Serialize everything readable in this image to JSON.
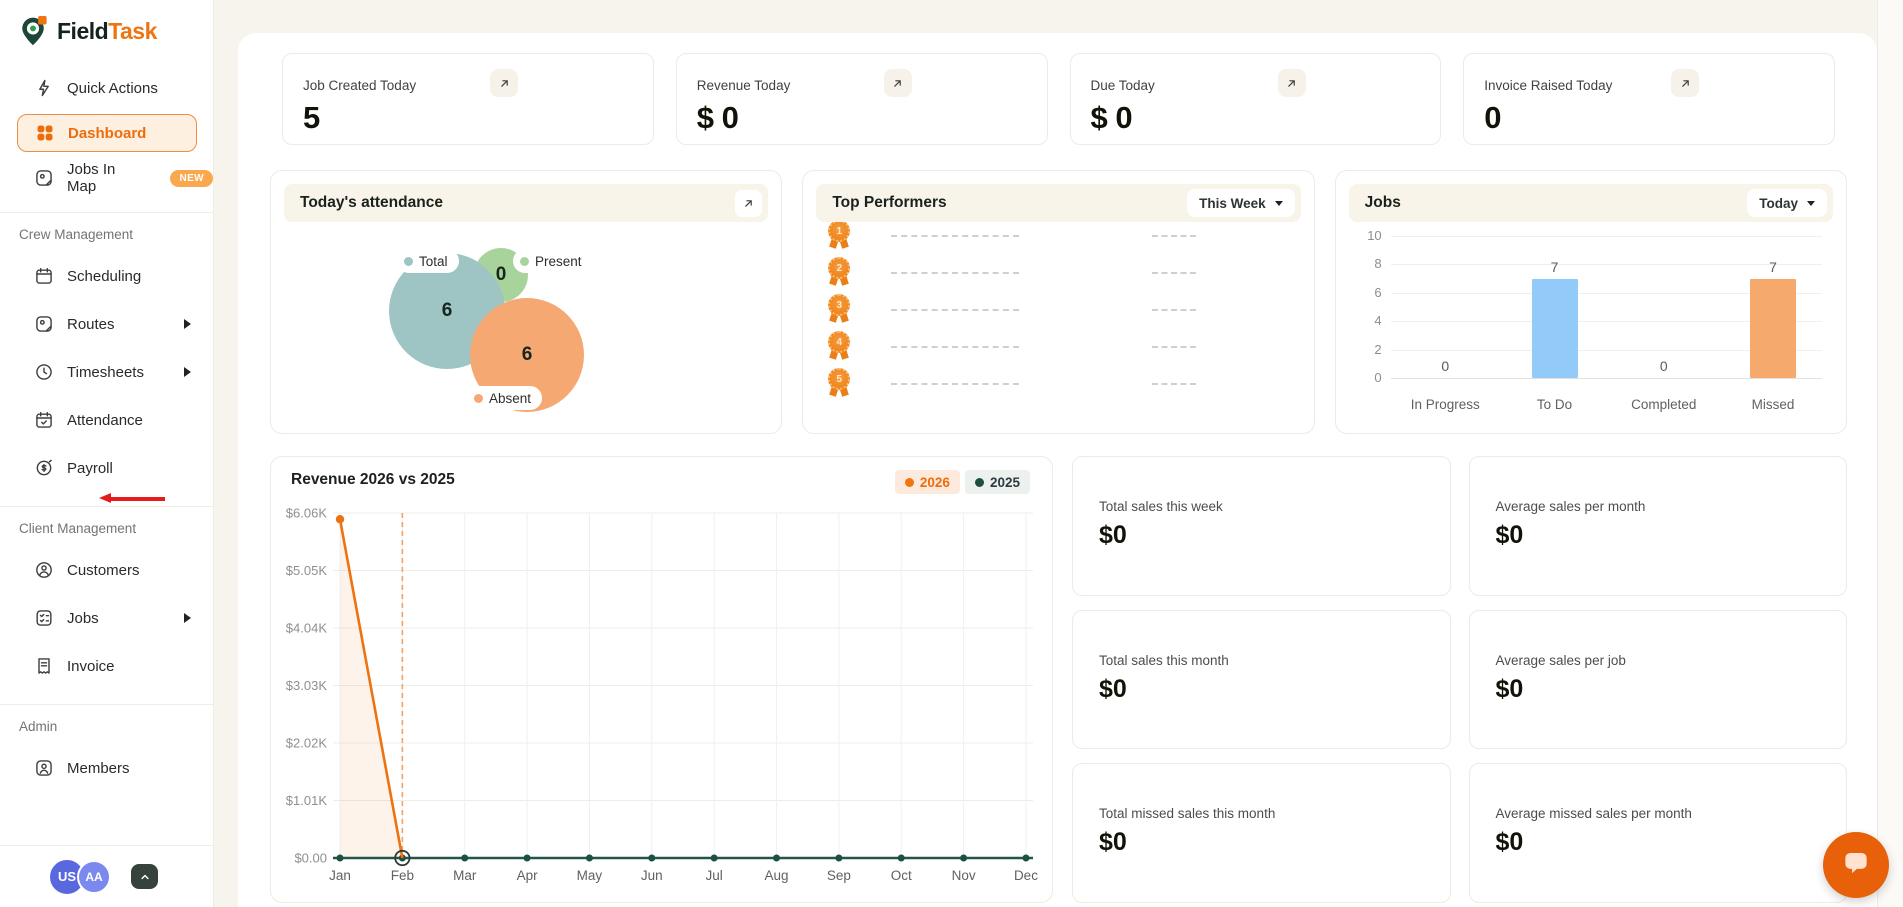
{
  "brand": {
    "name_primary": "Field",
    "name_secondary": "Task"
  },
  "sidebar": {
    "primary": [
      {
        "id": "quick-actions",
        "label": "Quick Actions",
        "icon": "lightning"
      },
      {
        "id": "dashboard",
        "label": "Dashboard",
        "icon": "dashboard",
        "active": true
      },
      {
        "id": "jobs-in-map",
        "label": "Jobs In Map",
        "icon": "map-pin",
        "badge": "NEW"
      }
    ],
    "sections": [
      {
        "title": "Crew Management",
        "items": [
          {
            "id": "scheduling",
            "label": "Scheduling",
            "icon": "calendar"
          },
          {
            "id": "routes",
            "label": "Routes",
            "icon": "map-pin",
            "submenu": true
          },
          {
            "id": "timesheets",
            "label": "Timesheets",
            "icon": "clock",
            "submenu": true
          },
          {
            "id": "attendance",
            "label": "Attendance",
            "icon": "calendar-check"
          },
          {
            "id": "payroll",
            "label": "Payroll",
            "icon": "payroll",
            "annotated": true
          }
        ]
      },
      {
        "title": "Client Management",
        "items": [
          {
            "id": "customers",
            "label": "Customers",
            "icon": "user"
          },
          {
            "id": "jobs",
            "label": "Jobs",
            "icon": "checklist",
            "submenu": true
          },
          {
            "id": "invoice",
            "label": "Invoice",
            "icon": "receipt"
          }
        ]
      },
      {
        "title": "Admin",
        "items": [
          {
            "id": "members",
            "label": "Members",
            "icon": "user-square"
          }
        ]
      }
    ],
    "avatars": [
      {
        "initials": "US",
        "color": "#5a68e0"
      },
      {
        "initials": "AA",
        "color": "#7b89ef"
      }
    ]
  },
  "top_stats": [
    {
      "label": "Job Created Today",
      "value": "5"
    },
    {
      "label": "Revenue Today",
      "value": "$ 0"
    },
    {
      "label": "Due Today",
      "value": "$ 0"
    },
    {
      "label": "Invoice Raised Today",
      "value": "0"
    }
  ],
  "attendance_card": {
    "title": "Today's attendance",
    "chart_data": {
      "type": "bubble",
      "bubbles": [
        {
          "label": "Total",
          "value": 6,
          "color": "#9ec5c4"
        },
        {
          "label": "Present",
          "value": 0,
          "color": "#a8d49c"
        },
        {
          "label": "Absent",
          "value": 6,
          "color": "#f6a873"
        }
      ]
    }
  },
  "top_performers": {
    "title": "Top Performers",
    "filter": "This Week",
    "ranks": [
      1,
      2,
      3,
      4,
      5
    ]
  },
  "jobs_card": {
    "title": "Jobs",
    "filter": "Today",
    "chart_data": {
      "type": "bar",
      "categories": [
        "In Progress",
        "To Do",
        "Completed",
        "Missed"
      ],
      "values": [
        0,
        7,
        0,
        7
      ],
      "bar_colors": [
        null,
        "#92cbf9",
        null,
        "#f6a96d"
      ],
      "ylim": [
        0,
        10
      ],
      "yticks": [
        0,
        2,
        4,
        6,
        8,
        10
      ],
      "grid": true
    }
  },
  "revenue_card": {
    "title": "Revenue 2026 vs 2025",
    "legend": [
      {
        "label": "2026",
        "color": "#ed6c0c",
        "dot": "#f07410",
        "bg": "#fdeadc"
      },
      {
        "label": "2025",
        "color": "#2c3a42",
        "dot": "#1d4f41",
        "bg": "#edf1ed"
      }
    ],
    "chart_data": {
      "type": "line",
      "x": [
        "Jan",
        "Feb",
        "Mar",
        "Apr",
        "May",
        "Jun",
        "Jul",
        "Aug",
        "Sep",
        "Oct",
        "Nov",
        "Dec"
      ],
      "ytick_labels": [
        "$6.06K",
        "$5.05K",
        "$4.04K",
        "$3.03K",
        "$2.02K",
        "$1.01K",
        "$0.00"
      ],
      "ylim": [
        0,
        6060
      ],
      "grid": true,
      "highlight_x": "Feb",
      "series": [
        {
          "name": "2026",
          "color": "#ee7210",
          "values": [
            5950,
            0
          ]
        },
        {
          "name": "2025",
          "color": "#23564a",
          "values": [
            0,
            0,
            0,
            0,
            0,
            0,
            0,
            0,
            0,
            0,
            0,
            0
          ]
        }
      ]
    }
  },
  "sales_stats": [
    {
      "label": "Total sales this week",
      "value": "$0"
    },
    {
      "label": "Average sales per month",
      "value": "$0"
    },
    {
      "label": "Total sales this month",
      "value": "$0"
    },
    {
      "label": "Average sales per job",
      "value": "$0"
    },
    {
      "label": "Total missed sales this month",
      "value": "$0"
    },
    {
      "label": "Average missed sales per month",
      "value": "$0"
    }
  ],
  "colors": {
    "accent": "#ed6c0c",
    "bar_blue": "#92cbf9",
    "bar_orange": "#f6a96d",
    "teal_line": "#23564a",
    "cream": "#f7f4ed"
  }
}
